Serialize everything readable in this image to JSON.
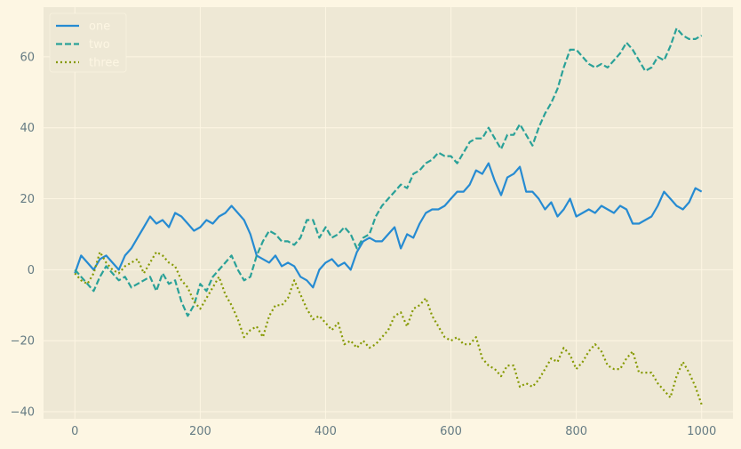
{
  "chart_data": {
    "type": "line",
    "title": "",
    "xlabel": "",
    "ylabel": "",
    "xlim": [
      -50,
      1050
    ],
    "ylim": [
      -42,
      74
    ],
    "x_ticks": [
      0,
      200,
      400,
      600,
      800,
      1000
    ],
    "y_ticks": [
      -40,
      -20,
      0,
      20,
      40,
      60
    ],
    "x_tick_labels": [
      "0",
      "200",
      "400",
      "600",
      "800",
      "1000"
    ],
    "y_tick_labels": [
      "−40",
      "−20",
      "0",
      "20",
      "40",
      "60"
    ],
    "grid": true,
    "legend_position": "upper-left",
    "series": [
      {
        "name": "one",
        "color": "#268bd2",
        "dash": "solid",
        "points": [
          [
            0,
            -1
          ],
          [
            10,
            4
          ],
          [
            20,
            2
          ],
          [
            30,
            0
          ],
          [
            40,
            3
          ],
          [
            50,
            4
          ],
          [
            60,
            2
          ],
          [
            70,
            0
          ],
          [
            80,
            4
          ],
          [
            90,
            6
          ],
          [
            100,
            9
          ],
          [
            110,
            12
          ],
          [
            120,
            15
          ],
          [
            130,
            13
          ],
          [
            140,
            14
          ],
          [
            150,
            12
          ],
          [
            160,
            16
          ],
          [
            170,
            15
          ],
          [
            180,
            13
          ],
          [
            190,
            11
          ],
          [
            200,
            12
          ],
          [
            210,
            14
          ],
          [
            220,
            13
          ],
          [
            230,
            15
          ],
          [
            240,
            16
          ],
          [
            250,
            18
          ],
          [
            260,
            16
          ],
          [
            270,
            14
          ],
          [
            280,
            10
          ],
          [
            290,
            4
          ],
          [
            300,
            3
          ],
          [
            310,
            2
          ],
          [
            320,
            4
          ],
          [
            330,
            1
          ],
          [
            340,
            2
          ],
          [
            350,
            1
          ],
          [
            360,
            -2
          ],
          [
            370,
            -3
          ],
          [
            380,
            -5
          ],
          [
            390,
            0
          ],
          [
            400,
            2
          ],
          [
            410,
            3
          ],
          [
            420,
            1
          ],
          [
            430,
            2
          ],
          [
            440,
            0
          ],
          [
            450,
            5
          ],
          [
            460,
            8
          ],
          [
            470,
            9
          ],
          [
            480,
            8
          ],
          [
            490,
            8
          ],
          [
            500,
            10
          ],
          [
            510,
            12
          ],
          [
            520,
            6
          ],
          [
            530,
            10
          ],
          [
            540,
            9
          ],
          [
            550,
            13
          ],
          [
            560,
            16
          ],
          [
            570,
            17
          ],
          [
            580,
            17
          ],
          [
            590,
            18
          ],
          [
            600,
            20
          ],
          [
            610,
            22
          ],
          [
            620,
            22
          ],
          [
            630,
            24
          ],
          [
            640,
            28
          ],
          [
            650,
            27
          ],
          [
            660,
            30
          ],
          [
            670,
            25
          ],
          [
            680,
            21
          ],
          [
            690,
            26
          ],
          [
            700,
            27
          ],
          [
            710,
            29
          ],
          [
            720,
            22
          ],
          [
            730,
            22
          ],
          [
            740,
            20
          ],
          [
            750,
            17
          ],
          [
            760,
            19
          ],
          [
            770,
            15
          ],
          [
            780,
            17
          ],
          [
            790,
            20
          ],
          [
            800,
            15
          ],
          [
            810,
            16
          ],
          [
            820,
            17
          ],
          [
            830,
            16
          ],
          [
            840,
            18
          ],
          [
            850,
            17
          ],
          [
            860,
            16
          ],
          [
            870,
            18
          ],
          [
            880,
            17
          ],
          [
            890,
            13
          ],
          [
            900,
            13
          ],
          [
            910,
            14
          ],
          [
            920,
            15
          ],
          [
            930,
            18
          ],
          [
            940,
            22
          ],
          [
            950,
            20
          ],
          [
            960,
            18
          ],
          [
            970,
            17
          ],
          [
            980,
            19
          ],
          [
            990,
            23
          ],
          [
            1000,
            22
          ]
        ]
      },
      {
        "name": "two",
        "color": "#2aa198",
        "dash": "dashed",
        "points": [
          [
            0,
            0
          ],
          [
            10,
            -2
          ],
          [
            20,
            -4
          ],
          [
            30,
            -6
          ],
          [
            40,
            -2
          ],
          [
            50,
            1
          ],
          [
            60,
            -1
          ],
          [
            70,
            -3
          ],
          [
            80,
            -2
          ],
          [
            90,
            -5
          ],
          [
            100,
            -4
          ],
          [
            110,
            -3
          ],
          [
            120,
            -2
          ],
          [
            130,
            -6
          ],
          [
            140,
            -1
          ],
          [
            150,
            -4
          ],
          [
            160,
            -3
          ],
          [
            170,
            -9
          ],
          [
            180,
            -13
          ],
          [
            190,
            -10
          ],
          [
            200,
            -4
          ],
          [
            210,
            -6
          ],
          [
            220,
            -2
          ],
          [
            230,
            0
          ],
          [
            240,
            2
          ],
          [
            250,
            4
          ],
          [
            260,
            0
          ],
          [
            270,
            -3
          ],
          [
            280,
            -2
          ],
          [
            290,
            4
          ],
          [
            300,
            8
          ],
          [
            310,
            11
          ],
          [
            320,
            10
          ],
          [
            330,
            8
          ],
          [
            340,
            8
          ],
          [
            350,
            7
          ],
          [
            360,
            9
          ],
          [
            370,
            14
          ],
          [
            380,
            14
          ],
          [
            390,
            9
          ],
          [
            400,
            12
          ],
          [
            410,
            9
          ],
          [
            420,
            10
          ],
          [
            430,
            12
          ],
          [
            440,
            10
          ],
          [
            450,
            6
          ],
          [
            460,
            9
          ],
          [
            470,
            10
          ],
          [
            480,
            15
          ],
          [
            490,
            18
          ],
          [
            500,
            20
          ],
          [
            510,
            22
          ],
          [
            520,
            24
          ],
          [
            530,
            23
          ],
          [
            540,
            27
          ],
          [
            550,
            28
          ],
          [
            560,
            30
          ],
          [
            570,
            31
          ],
          [
            580,
            33
          ],
          [
            590,
            32
          ],
          [
            600,
            32
          ],
          [
            610,
            30
          ],
          [
            620,
            33
          ],
          [
            630,
            36
          ],
          [
            640,
            37
          ],
          [
            650,
            37
          ],
          [
            660,
            40
          ],
          [
            670,
            37
          ],
          [
            680,
            34
          ],
          [
            690,
            38
          ],
          [
            700,
            38
          ],
          [
            710,
            41
          ],
          [
            720,
            38
          ],
          [
            730,
            35
          ],
          [
            740,
            40
          ],
          [
            750,
            44
          ],
          [
            760,
            47
          ],
          [
            770,
            51
          ],
          [
            780,
            57
          ],
          [
            790,
            62
          ],
          [
            800,
            62
          ],
          [
            810,
            60
          ],
          [
            820,
            58
          ],
          [
            830,
            57
          ],
          [
            840,
            58
          ],
          [
            850,
            57
          ],
          [
            860,
            59
          ],
          [
            870,
            61
          ],
          [
            880,
            64
          ],
          [
            890,
            62
          ],
          [
            900,
            59
          ],
          [
            910,
            56
          ],
          [
            920,
            57
          ],
          [
            930,
            60
          ],
          [
            940,
            59
          ],
          [
            950,
            63
          ],
          [
            960,
            68
          ],
          [
            970,
            66
          ],
          [
            980,
            65
          ],
          [
            990,
            65
          ],
          [
            1000,
            66
          ]
        ]
      },
      {
        "name": "three",
        "color": "#859900",
        "dash": "dotted",
        "points": [
          [
            0,
            -1
          ],
          [
            10,
            -3
          ],
          [
            20,
            -4
          ],
          [
            30,
            -1
          ],
          [
            40,
            5
          ],
          [
            50,
            2
          ],
          [
            60,
            0
          ],
          [
            70,
            -1
          ],
          [
            80,
            1
          ],
          [
            90,
            2
          ],
          [
            100,
            3
          ],
          [
            110,
            -1
          ],
          [
            120,
            2
          ],
          [
            130,
            5
          ],
          [
            140,
            4
          ],
          [
            150,
            2
          ],
          [
            160,
            1
          ],
          [
            170,
            -3
          ],
          [
            180,
            -5
          ],
          [
            190,
            -9
          ],
          [
            200,
            -11
          ],
          [
            210,
            -8
          ],
          [
            220,
            -5
          ],
          [
            230,
            -2
          ],
          [
            240,
            -7
          ],
          [
            250,
            -10
          ],
          [
            260,
            -14
          ],
          [
            270,
            -19
          ],
          [
            280,
            -17
          ],
          [
            290,
            -16
          ],
          [
            300,
            -19
          ],
          [
            310,
            -13
          ],
          [
            320,
            -10
          ],
          [
            330,
            -10
          ],
          [
            340,
            -8
          ],
          [
            350,
            -3
          ],
          [
            360,
            -7
          ],
          [
            370,
            -11
          ],
          [
            380,
            -14
          ],
          [
            390,
            -13
          ],
          [
            400,
            -15
          ],
          [
            410,
            -17
          ],
          [
            420,
            -15
          ],
          [
            430,
            -21
          ],
          [
            440,
            -20
          ],
          [
            450,
            -22
          ],
          [
            460,
            -20
          ],
          [
            470,
            -22
          ],
          [
            480,
            -21
          ],
          [
            490,
            -19
          ],
          [
            500,
            -17
          ],
          [
            510,
            -13
          ],
          [
            520,
            -12
          ],
          [
            530,
            -16
          ],
          [
            540,
            -11
          ],
          [
            550,
            -10
          ],
          [
            560,
            -8
          ],
          [
            570,
            -13
          ],
          [
            580,
            -16
          ],
          [
            590,
            -19
          ],
          [
            600,
            -20
          ],
          [
            610,
            -19
          ],
          [
            620,
            -21
          ],
          [
            630,
            -21
          ],
          [
            640,
            -19
          ],
          [
            650,
            -25
          ],
          [
            660,
            -27
          ],
          [
            670,
            -28
          ],
          [
            680,
            -30
          ],
          [
            690,
            -27
          ],
          [
            700,
            -27
          ],
          [
            710,
            -33
          ],
          [
            720,
            -32
          ],
          [
            730,
            -33
          ],
          [
            740,
            -31
          ],
          [
            750,
            -28
          ],
          [
            760,
            -25
          ],
          [
            770,
            -26
          ],
          [
            780,
            -22
          ],
          [
            790,
            -24
          ],
          [
            800,
            -28
          ],
          [
            810,
            -26
          ],
          [
            820,
            -23
          ],
          [
            830,
            -21
          ],
          [
            840,
            -23
          ],
          [
            850,
            -27
          ],
          [
            860,
            -28
          ],
          [
            870,
            -28
          ],
          [
            880,
            -25
          ],
          [
            890,
            -23
          ],
          [
            900,
            -29
          ],
          [
            910,
            -29
          ],
          [
            920,
            -29
          ],
          [
            930,
            -32
          ],
          [
            940,
            -34
          ],
          [
            950,
            -36
          ],
          [
            960,
            -30
          ],
          [
            970,
            -26
          ],
          [
            980,
            -29
          ],
          [
            990,
            -33
          ],
          [
            1000,
            -38
          ]
        ]
      }
    ]
  },
  "colors": {
    "figure_background": "#fdf6e3",
    "axes_background": "#eee8d5",
    "grid": "#fdf6e3",
    "tick_text": "#657b83",
    "legend_background": "#eee8d5",
    "legend_text": "#fdf6e3"
  }
}
